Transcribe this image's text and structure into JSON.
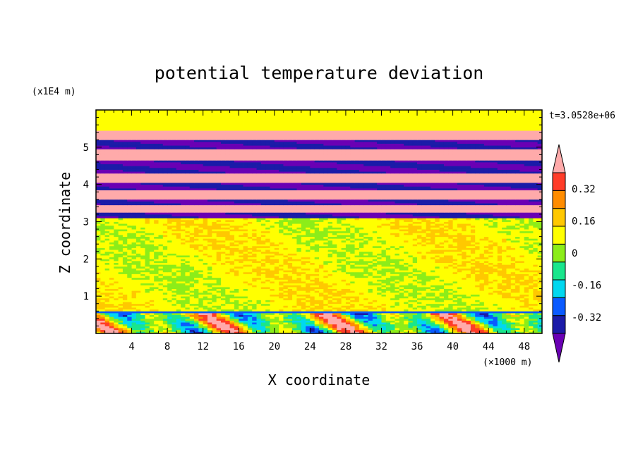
{
  "chart_data": {
    "type": "heatmap",
    "title": "potential temperature deviation",
    "xlabel": "X coordinate",
    "ylabel": "Z coordinate",
    "x_unit": "(×1000 m)",
    "y_unit": "(x1E4 m)",
    "time_label": "t=3.0528e+06",
    "xlim": [
      0,
      50
    ],
    "ylim": [
      0,
      6
    ],
    "x_ticks": [
      4,
      8,
      12,
      16,
      20,
      24,
      28,
      32,
      36,
      40,
      44,
      48
    ],
    "y_ticks": [
      1,
      2,
      3,
      4,
      5
    ],
    "colorbar": {
      "levels": [
        -0.4,
        -0.32,
        -0.24,
        -0.16,
        -0.08,
        0,
        0.08,
        0.16,
        0.24,
        0.32,
        0.4
      ],
      "tick_labels": [
        "0.32",
        "0.16",
        "0",
        "-0.16",
        "-0.32"
      ],
      "tick_values": [
        0.32,
        0.16,
        0,
        -0.16,
        -0.32
      ],
      "colors": [
        "#6a00b4",
        "#1b1ba8",
        "#0a5aff",
        "#00d8f0",
        "#19e68c",
        "#8ced19",
        "#ffff00",
        "#ffc800",
        "#ff8c00",
        "#ff3c28",
        "#ffaaaa"
      ],
      "extend": "both"
    },
    "bands": [
      {
        "z0": 0.0,
        "z1": 0.55,
        "value": 0.0,
        "pattern": "mixed"
      },
      {
        "z0": 0.55,
        "z1": 0.62,
        "value": -0.32
      },
      {
        "z0": 0.62,
        "z1": 3.1,
        "value": 0.04,
        "pattern": "speckle"
      },
      {
        "z0": 3.1,
        "z1": 3.25,
        "value": -0.4
      },
      {
        "z0": 3.25,
        "z1": 3.45,
        "value": 0.4
      },
      {
        "z0": 3.45,
        "z1": 3.6,
        "value": -0.4
      },
      {
        "z0": 3.6,
        "z1": 3.85,
        "value": 0.4
      },
      {
        "z0": 3.85,
        "z1": 4.05,
        "value": -0.4
      },
      {
        "z0": 4.05,
        "z1": 4.3,
        "value": 0.4
      },
      {
        "z0": 4.3,
        "z1": 4.65,
        "value": -0.4
      },
      {
        "z0": 4.65,
        "z1": 4.95,
        "value": 0.4
      },
      {
        "z0": 4.95,
        "z1": 5.2,
        "value": -0.4
      },
      {
        "z0": 5.2,
        "z1": 5.45,
        "value": 0.4
      },
      {
        "z0": 5.45,
        "z1": 6.0,
        "value": 0.0
      }
    ]
  }
}
